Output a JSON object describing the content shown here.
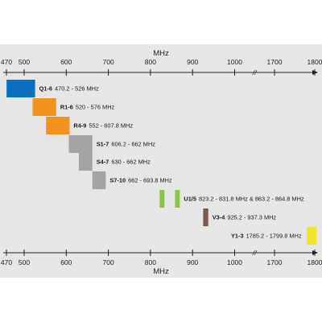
{
  "chart_data": {
    "type": "bar",
    "xlabel": "MHz",
    "x_ticks": [
      "470",
      "500",
      "600",
      "700",
      "800",
      "900",
      "1000",
      "1700",
      "1800"
    ],
    "axis_break": "//",
    "grid": false,
    "bands": [
      {
        "name": "Q1-6",
        "range": "470.2 - 526 MHz",
        "segments": [
          [
            470.2,
            526
          ]
        ],
        "color": "#0a6fc2"
      },
      {
        "name": "R1-6",
        "range": "520 - 576 MHz",
        "segments": [
          [
            520,
            576
          ]
        ],
        "color": "#f5921e"
      },
      {
        "name": "R4-9",
        "range": "552 - 607.8 MHz",
        "segments": [
          [
            552,
            607.8
          ]
        ],
        "color": "#f5921e"
      },
      {
        "name": "S1-7",
        "range": "606.2 - 662 MHz",
        "segments": [
          [
            606.2,
            662
          ]
        ],
        "color": "#a4a4a4"
      },
      {
        "name": "S4-7",
        "range": "630 - 662 MHz",
        "segments": [
          [
            630,
            662
          ]
        ],
        "color": "#a4a4a4"
      },
      {
        "name": "S7-10",
        "range": "662 - 693.8 MHz",
        "segments": [
          [
            662,
            693.8
          ]
        ],
        "color": "#a4a4a4"
      },
      {
        "name": "U1/5",
        "range": "823.2 - 831.8 MHz & 863.2 - 864.8 MHz",
        "segments": [
          [
            823.2,
            831.8
          ],
          [
            863.2,
            864.8
          ]
        ],
        "color": "#8cc63f"
      },
      {
        "name": "V3-4",
        "range": "925.2 - 937.3 MHz",
        "segments": [
          [
            925.2,
            937.3
          ]
        ],
        "color": "#7a5a4a"
      },
      {
        "name": "Y1-3",
        "range": "1785.2 - 1799.8 MHz",
        "segments": [
          [
            1785.2,
            1799.8
          ]
        ],
        "color": "#f0e62a"
      }
    ]
  }
}
